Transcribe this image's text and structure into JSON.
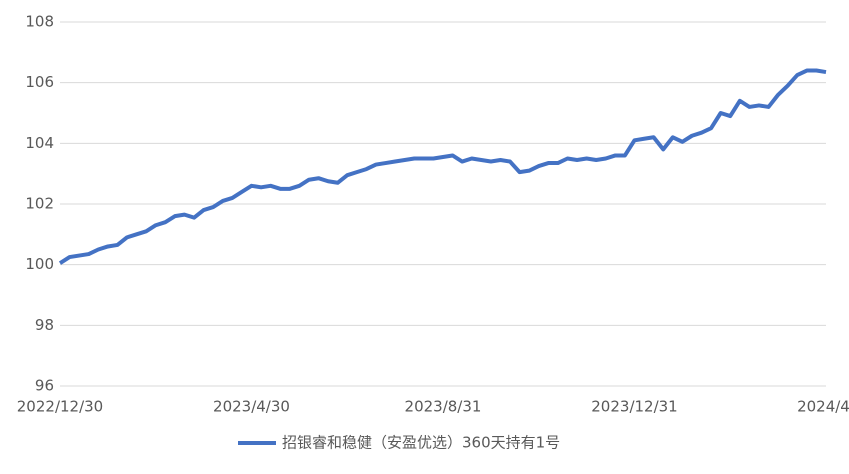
{
  "chart_data": {
    "type": "line",
    "categories": [
      "2022/12/30",
      null,
      null,
      null,
      null,
      null,
      null,
      null,
      null,
      null,
      null,
      null,
      null,
      null,
      null,
      null,
      null,
      null,
      null,
      null,
      "2023/4/30",
      null,
      null,
      null,
      null,
      null,
      null,
      null,
      null,
      null,
      null,
      null,
      null,
      null,
      null,
      null,
      null,
      null,
      null,
      null,
      "2023/8/31",
      null,
      null,
      null,
      null,
      null,
      null,
      null,
      null,
      null,
      null,
      null,
      null,
      null,
      null,
      null,
      null,
      null,
      null,
      null,
      "2023/12/31",
      null,
      null,
      null,
      null,
      null,
      null,
      null,
      null,
      null,
      null,
      null,
      null,
      null,
      null,
      null,
      null,
      null,
      null,
      null,
      "2024/4/"
    ],
    "series": [
      {
        "name": "招银睿和稳健（安盈优选）360天持有1号",
        "color": "#4472c4",
        "values": [
          100.05,
          100.25,
          100.3,
          100.35,
          100.5,
          100.6,
          100.65,
          100.9,
          101.0,
          101.1,
          101.3,
          101.4,
          101.6,
          101.65,
          101.55,
          101.8,
          101.9,
          102.1,
          102.2,
          102.4,
          102.6,
          102.55,
          102.6,
          102.5,
          102.5,
          102.6,
          102.8,
          102.85,
          102.75,
          102.7,
          102.95,
          103.05,
          103.15,
          103.3,
          103.35,
          103.4,
          103.45,
          103.5,
          103.5,
          103.5,
          103.55,
          103.6,
          103.4,
          103.5,
          103.45,
          103.4,
          103.45,
          103.4,
          103.05,
          103.1,
          103.25,
          103.35,
          103.35,
          103.5,
          103.45,
          103.5,
          103.45,
          103.5,
          103.6,
          103.6,
          104.1,
          104.15,
          104.2,
          103.8,
          104.2,
          104.05,
          104.25,
          104.35,
          104.5,
          105.0,
          104.9,
          105.4,
          105.2,
          105.25,
          105.2,
          105.6,
          105.9,
          106.25,
          106.4,
          106.4,
          106.35
        ]
      }
    ],
    "ylim": [
      96,
      108
    ],
    "yticks": [
      96,
      98,
      100,
      102,
      104,
      106,
      108
    ],
    "grid": true,
    "legend": "bottom"
  }
}
